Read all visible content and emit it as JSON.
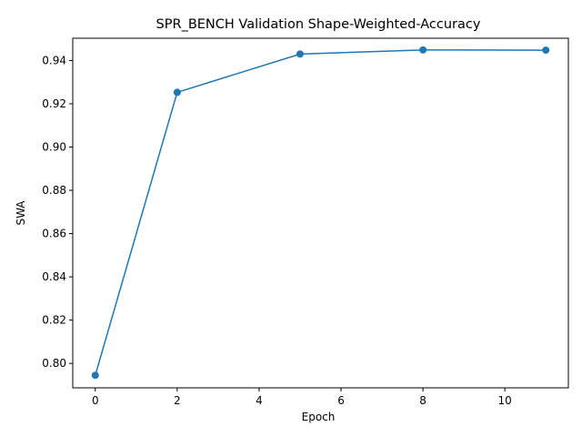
{
  "chart_data": {
    "type": "line",
    "title": "SPR_BENCH Validation Shape-Weighted-Accuracy",
    "xlabel": "Epoch",
    "ylabel": "SWA",
    "xlim": [
      -0.55,
      11.55
    ],
    "ylim": [
      0.7887,
      0.9503
    ],
    "x_ticks": [
      0,
      2,
      4,
      6,
      8,
      10
    ],
    "y_ticks": [
      0.8,
      0.82,
      0.84,
      0.86,
      0.88,
      0.9,
      0.92,
      0.94
    ],
    "y_tick_decimals": 2,
    "grid": false,
    "legend": "none",
    "series": [
      {
        "x": [
          0,
          2,
          5,
          8,
          11
        ],
        "values": [
          0.7945,
          0.9253,
          0.943,
          0.9449,
          0.9448
        ],
        "color": "#1f77b4",
        "marker": "circle"
      }
    ]
  }
}
